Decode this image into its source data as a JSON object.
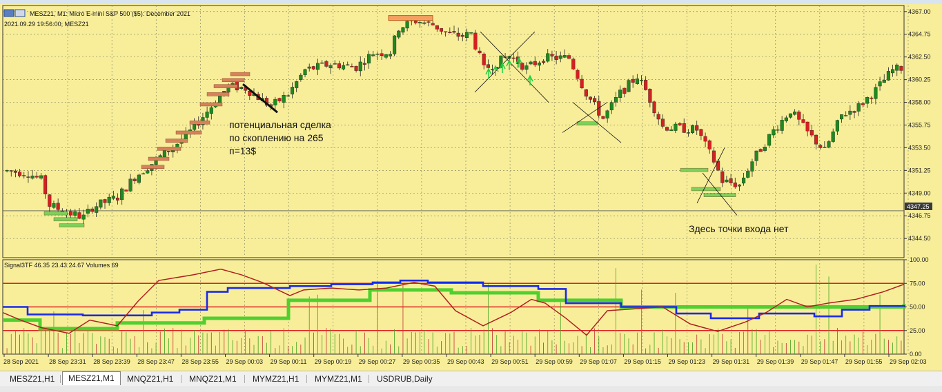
{
  "chart": {
    "header_title": "MESZ21, M1:  Micro E-mini S&P 500 ($5): December 2021",
    "header_time": "2021.09.29 19:56:00; MESZ21",
    "current_price": "4347.25",
    "price_ticks": [
      "4367.00",
      "4364.75",
      "4362.50",
      "4360.25",
      "4358.00",
      "4355.75",
      "4353.50",
      "4351.25",
      "4349.00",
      "4346.75",
      "4344.50"
    ],
    "note_trade_line1": "потенциальная сделка",
    "note_trade_line2": "по скоплению на 265",
    "note_trade_line3": "п=13$",
    "note_no_entry": "Здесь точки входа нет"
  },
  "indicator": {
    "label": "Signal3TF 46.35 23.43 24.67 Volumes 69",
    "ticks": [
      "100.00",
      "75.00",
      "50.00",
      "25.00",
      "0.00"
    ]
  },
  "time_ticks": [
    "28 Sep 2021",
    "28 Sep 23:31",
    "28 Sep 23:39",
    "28 Sep 23:47",
    "28 Sep 23:55",
    "29 Sep 00:03",
    "29 Sep 00:11",
    "29 Sep 00:19",
    "29 Sep 00:27",
    "29 Sep 00:35",
    "29 Sep 00:43",
    "29 Sep 00:51",
    "29 Sep 00:59",
    "29 Sep 01:07",
    "29 Sep 01:15",
    "29 Sep 01:23",
    "29 Sep 01:31",
    "29 Sep 01:39",
    "29 Sep 01:47",
    "29 Sep 01:55",
    "29 Sep 02:03"
  ],
  "tabs": [
    {
      "label": "MESZ21,H1",
      "active": false
    },
    {
      "label": "MESZ21,M1",
      "active": true
    },
    {
      "label": "MNQZ21,H1",
      "active": false
    },
    {
      "label": "MNQZ21,M1",
      "active": false
    },
    {
      "label": "MYMZ21,H1",
      "active": false
    },
    {
      "label": "MYMZ21,M1",
      "active": false
    },
    {
      "label": "USDRUB,Daily",
      "active": false
    }
  ],
  "colors": {
    "background": "#f8ee9a",
    "bull": "#1f8a1f",
    "bear": "#d42020",
    "grid": "#8a8a60",
    "blue_line": "#1a2ae8",
    "green_line": "#4fd02f",
    "red_line": "#b02020",
    "level_line": "#e02020"
  }
}
